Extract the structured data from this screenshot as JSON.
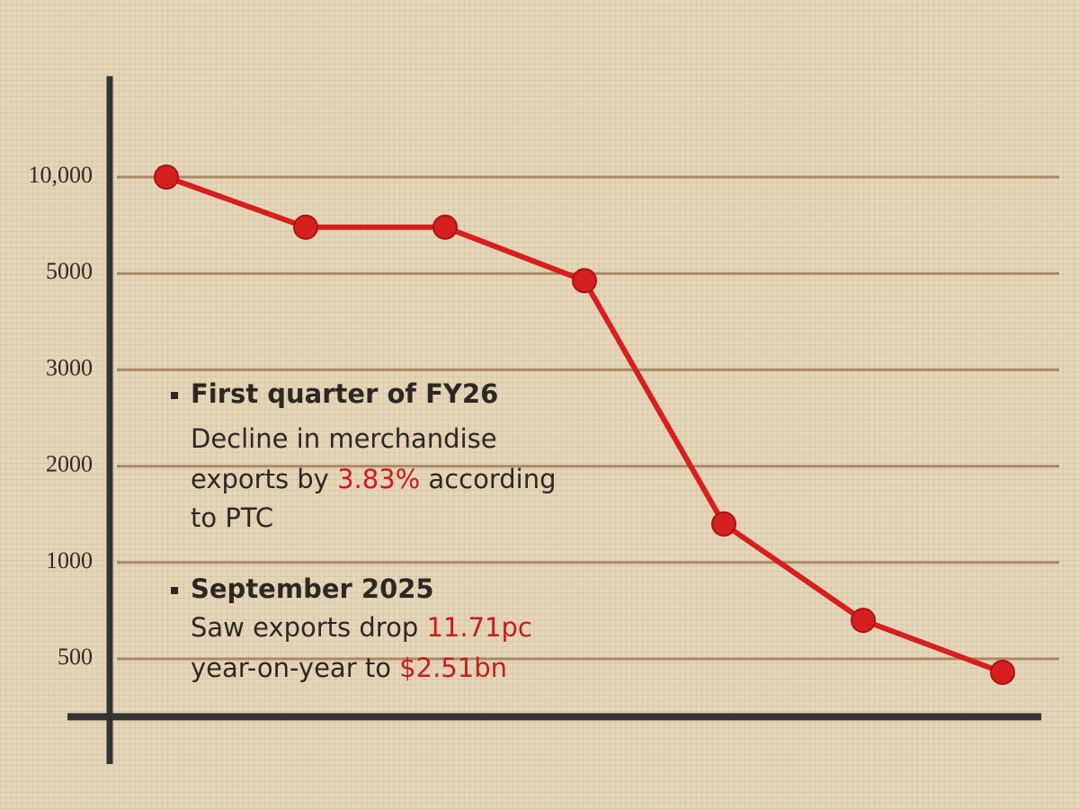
{
  "chart_data": {
    "type": "line",
    "categories": [
      null,
      null,
      null,
      null,
      null,
      null,
      null
    ],
    "series": [
      {
        "color": "#d61f1f",
        "values": [
          10000,
          7400,
          7400,
          4850,
          1400,
          700,
          430
        ]
      }
    ],
    "ylim": [
      200,
      15000
    ],
    "yticks": [
      {
        "value": 10000,
        "label": "10,000"
      },
      5000,
      3000,
      2000,
      1000,
      500
    ],
    "grid": true,
    "annotations": [
      {
        "heading": "First quarter of FY26",
        "lines": [
          [
            "Decline in merchandise"
          ],
          [
            "exports by ",
            "3.83%",
            " according"
          ],
          [
            "to PTC"
          ]
        ]
      },
      {
        "heading": "September 2025",
        "lines": [
          [
            "Saw exports drop ",
            "11.71pc"
          ],
          [
            "year-on-year to ",
            "$2.51bn"
          ]
        ]
      }
    ]
  }
}
